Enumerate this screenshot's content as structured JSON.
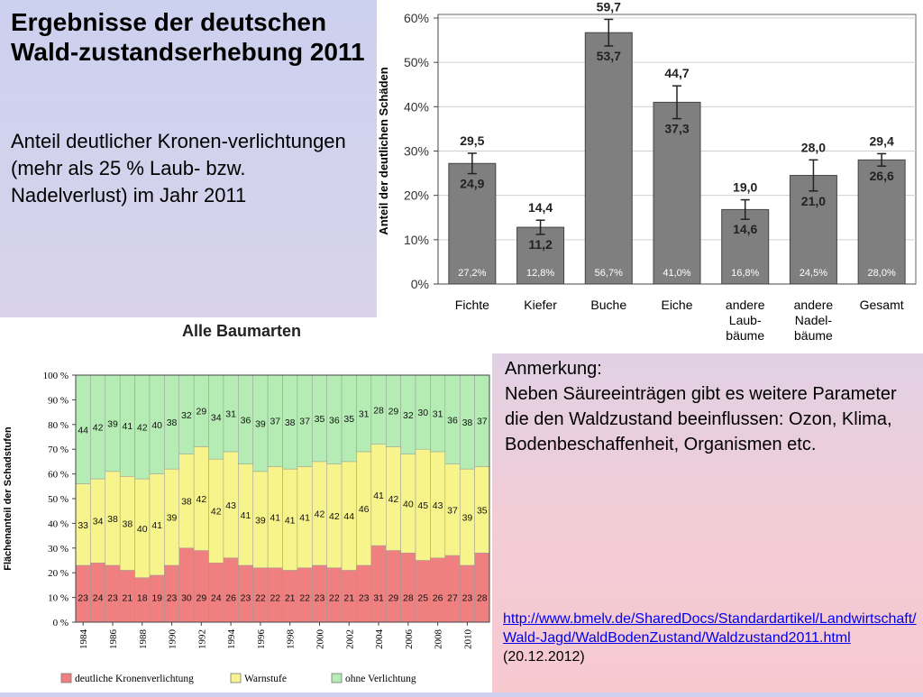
{
  "slide": {
    "title": "Ergebnisse der deutschen Wald-zustandserhebung 2011",
    "subtitle": "Anteil deutlicher Kronen-verlichtungen (mehr als 25 % Laub- bzw. Nadelverlust) im Jahr 2011",
    "note_heading": "Anmerkung:",
    "note_body": "Neben Säureeinträgen gibt es weitere Parameter die den Waldzustand beeinflussen: Ozon, Klima, Bodenbeschaffenheit, Organismen etc.",
    "source_url": "http://www.bmelv.de/SharedDocs/Standardartikel/Landwirtschaft/Wald-Jagd/WaldBodenZustand/Waldzustand2011.html",
    "source_date": "(20.12.2012)"
  },
  "chart_data": [
    {
      "type": "bar",
      "title": "",
      "ylabel": "Anteil der deutlichen Schäden",
      "ylim": [
        0,
        60
      ],
      "yticks": [
        "0%",
        "10%",
        "20%",
        "30%",
        "40%",
        "50%",
        "60%"
      ],
      "bar_color": "#7f7f7f",
      "categories": [
        [
          "Fichte"
        ],
        [
          "Kiefer"
        ],
        [
          "Buche"
        ],
        [
          "Eiche"
        ],
        [
          "andere",
          "Laub-",
          "bäume"
        ],
        [
          "andere",
          "Nadel-",
          "bäume"
        ],
        [
          "Gesamt"
        ]
      ],
      "values": [
        27.2,
        12.8,
        56.7,
        41.0,
        16.8,
        24.5,
        28.0
      ],
      "value_labels": [
        "27,2%",
        "12,8%",
        "56,7%",
        "41,0%",
        "16,8%",
        "24,5%",
        "28,0%"
      ],
      "upper": [
        29.5,
        14.4,
        59.7,
        44.7,
        19.0,
        28.0,
        29.4
      ],
      "upper_labels": [
        "29,5",
        "14,4",
        "59,7",
        "44,7",
        "19,0",
        "28,0",
        "29,4"
      ],
      "lower": [
        24.9,
        11.2,
        53.7,
        37.3,
        14.6,
        21.0,
        26.6
      ],
      "lower_labels": [
        "24,9",
        "11,2",
        "53,7",
        "37,3",
        "14,6",
        "21,0",
        "26,6"
      ]
    },
    {
      "type": "bar",
      "stacked": true,
      "title": "Alle Baumarten",
      "ylabel": "Flächenanteil der Schadstufen",
      "ylim": [
        0,
        100
      ],
      "yticks": [
        "0 %",
        "10 %",
        "20 %",
        "30 %",
        "40 %",
        "50 %",
        "60 %",
        "70 %",
        "80 %",
        "90 %",
        "100 %"
      ],
      "x": [
        1984,
        1985,
        1986,
        1987,
        1988,
        1989,
        1990,
        1991,
        1992,
        1993,
        1994,
        1995,
        1996,
        1997,
        1998,
        1999,
        2000,
        2001,
        2002,
        2003,
        2004,
        2005,
        2006,
        2007,
        2008,
        2009,
        2010,
        2011
      ],
      "xtick_labels": [
        "1984",
        "1986",
        "1988",
        "1990",
        "1992",
        "1994",
        "1996",
        "1998",
        "2000",
        "2002",
        "2004",
        "2006",
        "2008",
        "2010"
      ],
      "legend": "bottom",
      "series": [
        {
          "name": "deutliche Kronenverlichtung",
          "color": "#f08080",
          "values": [
            23,
            24,
            23,
            21,
            18,
            19,
            23,
            30,
            29,
            24,
            26,
            23,
            22,
            22,
            21,
            22,
            23,
            22,
            21,
            23,
            31,
            29,
            28,
            25,
            26,
            27,
            23,
            28
          ]
        },
        {
          "name": "Warnstufe",
          "color": "#f8f48c",
          "values": [
            33,
            34,
            38,
            38,
            40,
            41,
            39,
            38,
            42,
            42,
            43,
            41,
            39,
            41,
            41,
            41,
            42,
            42,
            44,
            46,
            41,
            42,
            40,
            45,
            43,
            37,
            39,
            35
          ]
        },
        {
          "name": "ohne Verlichtung",
          "color": "#b4ecb4",
          "values": [
            44,
            42,
            39,
            41,
            42,
            40,
            38,
            32,
            29,
            34,
            31,
            36,
            39,
            37,
            38,
            37,
            35,
            36,
            35,
            31,
            28,
            29,
            32,
            30,
            31,
            36,
            38,
            37
          ]
        }
      ]
    }
  ]
}
